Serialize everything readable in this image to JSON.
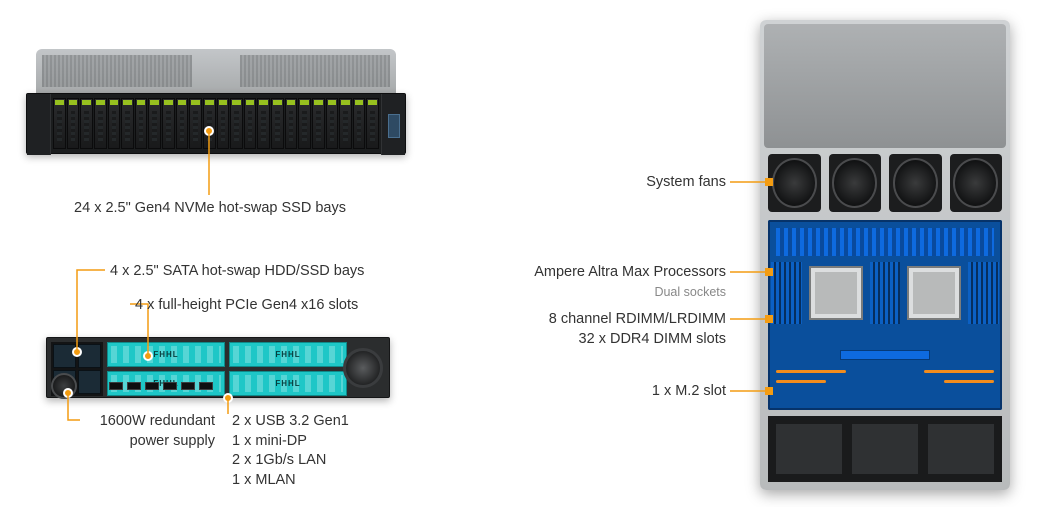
{
  "colors": {
    "accent": "#f39c12",
    "text": "#333333",
    "subtext": "#888888",
    "driveLed": "#97c11f",
    "pcie": "#1ec7c7",
    "pcb": "#0a4f9c"
  },
  "front": {
    "driveCount": 24,
    "label": "24 x 2.5\" Gen4 NVMe hot-swap SSD bays"
  },
  "rear": {
    "sataLabel": "4 x 2.5\" SATA hot-swap HDD/SSD bays",
    "pcieLabel": "4 x full-height PCIe Gen4 x16 slots",
    "pcieText": "FHHL",
    "pcieSlotCount": 4,
    "psuLabel": "1600W redundant\npower supply",
    "ioLabel": "2 x USB 3.2 Gen1\n1 x mini-DP\n2 x 1Gb/s LAN\n1 x MLAN"
  },
  "topview": {
    "fanCount": 4,
    "fansLabel": "System fans",
    "cpuLabel": "Ampere Altra Max Processors",
    "cpuSub": "Dual sockets",
    "dimmLabel": "8 channel RDIMM/LRDIMM\n32 x DDR4 DIMM slots",
    "m2Label": "1 x M.2 slot"
  }
}
